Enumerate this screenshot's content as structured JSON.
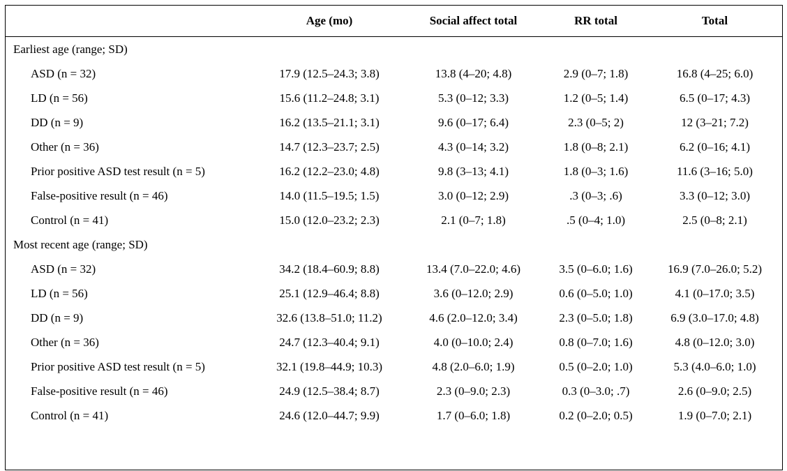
{
  "headers": [
    "",
    "Age (mo)",
    "Social affect total",
    "RR total",
    "Total"
  ],
  "groups": [
    {
      "title": "Earliest age (range; SD)",
      "rows": [
        {
          "label": "ASD (n = 32)",
          "cells": [
            "17.9 (12.5–24.3; 3.8)",
            "13.8 (4–20; 4.8)",
            "2.9 (0–7; 1.8)",
            "16.8 (4–25; 6.0)"
          ]
        },
        {
          "label": "LD (n = 56)",
          "cells": [
            "15.6 (11.2–24.8; 3.1)",
            "5.3 (0–12; 3.3)",
            "1.2 (0–5; 1.4)",
            "6.5 (0–17; 4.3)"
          ]
        },
        {
          "label": "DD (n = 9)",
          "cells": [
            "16.2 (13.5–21.1; 3.1)",
            "9.6 (0–17; 6.4)",
            "2.3 (0–5; 2)",
            "12 (3–21; 7.2)"
          ]
        },
        {
          "label": "Other (n = 36)",
          "cells": [
            "14.7 (12.3–23.7; 2.5)",
            "4.3 (0–14; 3.2)",
            "1.8 (0–8; 2.1)",
            "6.2 (0–16; 4.1)"
          ]
        },
        {
          "label": "Prior positive ASD test result (n = 5)",
          "cells": [
            "16.2 (12.2–23.0; 4.8)",
            "9.8 (3–13; 4.1)",
            "1.8 (0–3; 1.6)",
            "11.6 (3–16; 5.0)"
          ]
        },
        {
          "label": "False-positive result (n = 46)",
          "cells": [
            "14.0 (11.5–19.5; 1.5)",
            "3.0 (0–12; 2.9)",
            ".3 (0–3; .6)",
            "3.3 (0–12; 3.0)"
          ]
        },
        {
          "label": "Control (n = 41)",
          "cells": [
            "15.0 (12.0–23.2; 2.3)",
            "2.1 (0–7; 1.8)",
            ".5 (0–4; 1.0)",
            "2.5 (0–8; 2.1)"
          ]
        }
      ]
    },
    {
      "title": "Most recent age (range; SD)",
      "rows": [
        {
          "label": "ASD (n = 32)",
          "cells": [
            "34.2 (18.4–60.9; 8.8)",
            "13.4 (7.0–22.0; 4.6)",
            "3.5 (0–6.0; 1.6)",
            "16.9 (7.0–26.0; 5.2)"
          ]
        },
        {
          "label": "LD (n = 56)",
          "cells": [
            "25.1 (12.9–46.4; 8.8)",
            "3.6 (0–12.0; 2.9)",
            "0.6 (0–5.0; 1.0)",
            "4.1 (0–17.0; 3.5)"
          ]
        },
        {
          "label": "DD (n = 9)",
          "cells": [
            "32.6 (13.8–51.0; 11.2)",
            "4.6 (2.0–12.0; 3.4)",
            "2.3 (0–5.0; 1.8)",
            "6.9 (3.0–17.0; 4.8)"
          ]
        },
        {
          "label": "Other (n = 36)",
          "cells": [
            "24.7 (12.3–40.4; 9.1)",
            "4.0 (0–10.0; 2.4)",
            "0.8 (0–7.0; 1.6)",
            "4.8 (0–12.0; 3.0)"
          ]
        },
        {
          "label": "Prior positive ASD test result (n = 5)",
          "cells": [
            "32.1 (19.8–44.9; 10.3)",
            "4.8 (2.0–6.0; 1.9)",
            "0.5 (0–2.0; 1.0)",
            "5.3 (4.0–6.0; 1.0)"
          ]
        },
        {
          "label": "False-positive result (n = 46)",
          "cells": [
            "24.9 (12.5–38.4; 8.7)",
            "2.3 (0–9.0; 2.3)",
            "0.3 (0–3.0; .7)",
            "2.6 (0–9.0; 2.5)"
          ]
        },
        {
          "label": "Control (n = 41)",
          "cells": [
            "24.6 (12.0–44.7; 9.9)",
            "1.7 (0–6.0; 1.8)",
            "0.2 (0–2.0; 0.5)",
            "1.9 (0–7.0; 2.1)"
          ]
        }
      ]
    }
  ]
}
